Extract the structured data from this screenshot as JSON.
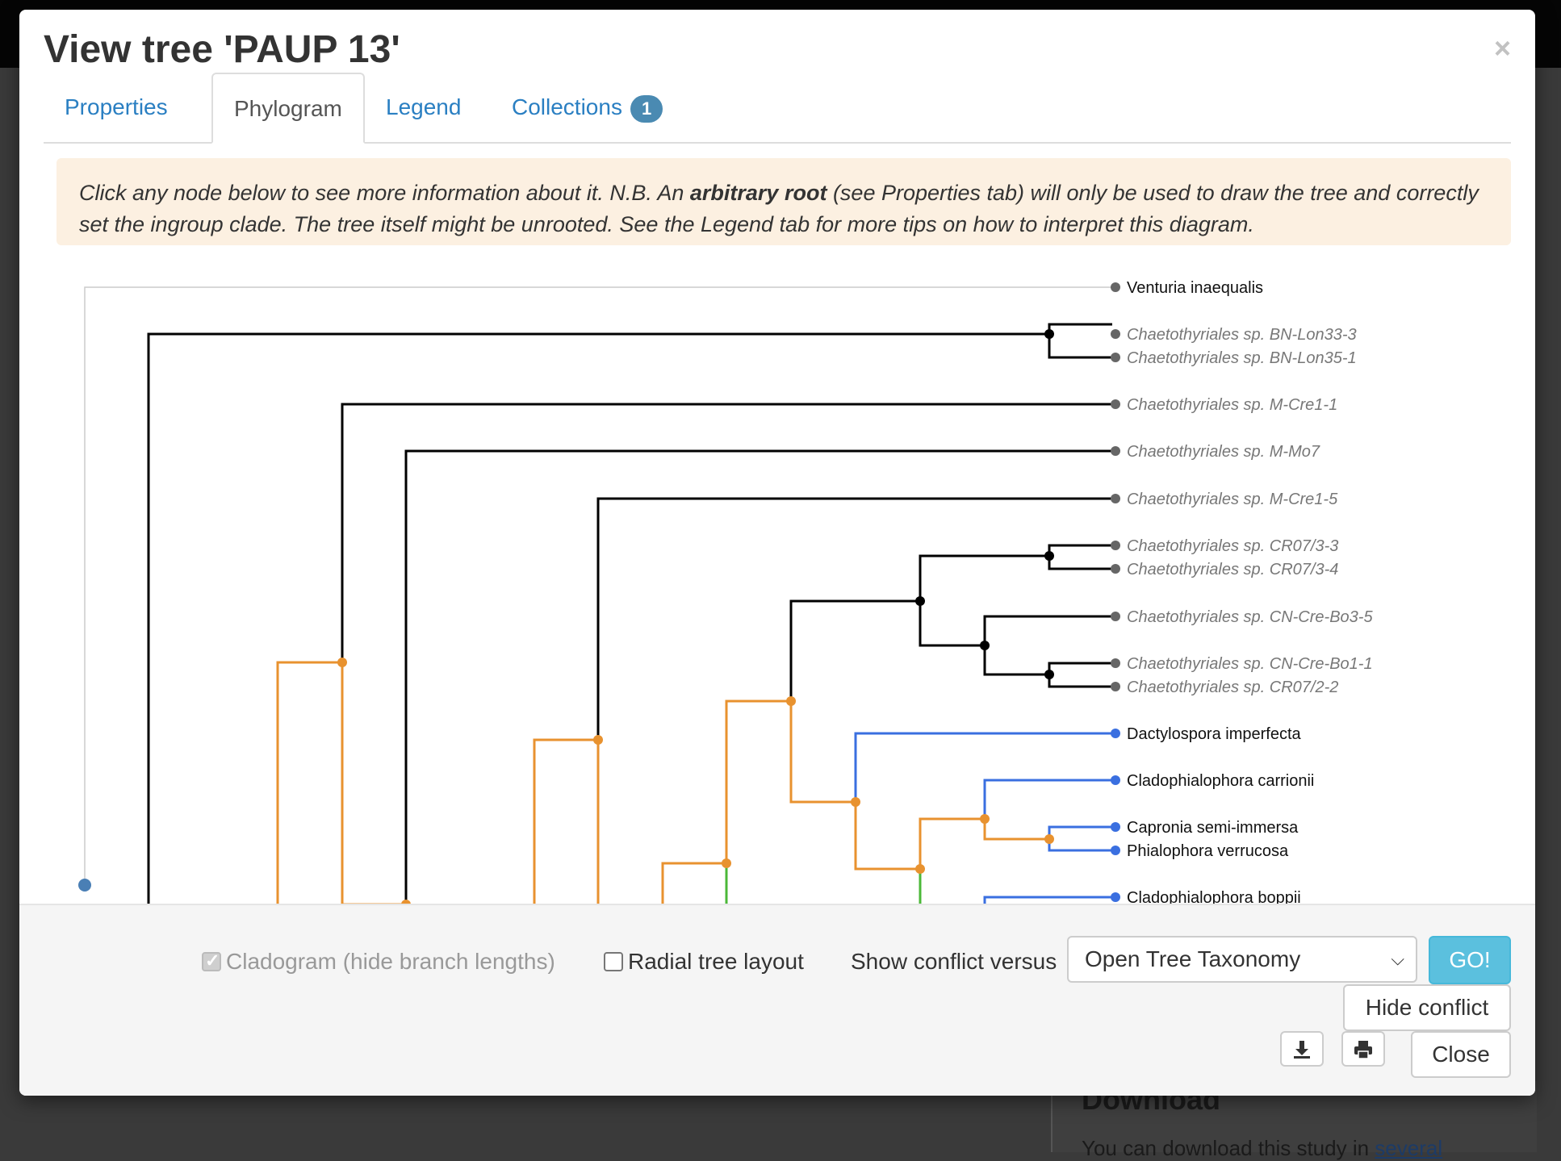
{
  "modal": {
    "title": "View tree 'PAUP 13'",
    "close_icon": "×"
  },
  "tabs": [
    {
      "label": "Properties",
      "active": false
    },
    {
      "label": "Phylogram",
      "active": true
    },
    {
      "label": "Legend",
      "active": false
    },
    {
      "label": "Collections",
      "active": false,
      "badge": "1"
    }
  ],
  "notice": {
    "part1": "Click any node below to see more information about it. N.B. An ",
    "bold": "arbitrary root",
    "part2": " (see Properties tab) will only be used to draw the tree and correctly set the ingroup clade. The tree itself might be unrooted. See the Legend tab for more tips on how to interpret this diagram."
  },
  "tree": {
    "colors": {
      "default": "#000000",
      "conflict": "#e8922f",
      "supported": "#3a6fe0",
      "resolves": "#4bb838",
      "outgroup": "#cccccc",
      "root_node": "#4a7fb5",
      "leaf_node": "#666666"
    },
    "leaves": [
      {
        "label": "Venturia inaequalis",
        "style": "normal",
        "color": "#666666"
      },
      {
        "label": "Chaetothyriales sp. BN-Lon33-3",
        "style": "italic",
        "color": "#666666"
      },
      {
        "label": "Chaetothyriales sp. BN-Lon35-1",
        "style": "italic",
        "color": "#666666"
      },
      {
        "label": "Chaetothyriales sp. M-Cre1-1",
        "style": "italic",
        "color": "#666666"
      },
      {
        "label": "Chaetothyriales sp. M-Mo7",
        "style": "italic",
        "color": "#666666"
      },
      {
        "label": "Chaetothyriales sp. M-Cre1-5",
        "style": "italic",
        "color": "#666666"
      },
      {
        "label": "Chaetothyriales sp. CR07/3-3",
        "style": "italic",
        "color": "#666666"
      },
      {
        "label": "Chaetothyriales sp. CR07/3-4",
        "style": "italic",
        "color": "#666666"
      },
      {
        "label": "Chaetothyriales sp. CN-Cre-Bo3-5",
        "style": "italic",
        "color": "#666666"
      },
      {
        "label": "Chaetothyriales sp. CN-Cre-Bo1-1",
        "style": "italic",
        "color": "#666666"
      },
      {
        "label": "Chaetothyriales sp. CR07/2-2",
        "style": "italic",
        "color": "#666666"
      },
      {
        "label": "Dactylospora imperfecta",
        "style": "normal",
        "color": "#3a6fe0"
      },
      {
        "label": "Cladophialophora carrionii",
        "style": "normal",
        "color": "#3a6fe0"
      },
      {
        "label": "Capronia semi-immersa",
        "style": "normal",
        "color": "#3a6fe0"
      },
      {
        "label": "Phialophora verrucosa",
        "style": "normal",
        "color": "#3a6fe0"
      },
      {
        "label": "Cladophialophora boppii",
        "style": "normal",
        "color": "#3a6fe0"
      }
    ]
  },
  "footer": {
    "cladogram_label": "Cladogram (hide branch lengths)",
    "cladogram_checked": true,
    "radial_label": "Radial tree layout",
    "radial_checked": false,
    "conflict_label": "Show conflict versus",
    "conflict_select_value": "Open Tree Taxonomy",
    "go_label": "GO!",
    "hide_conflict_label": "Hide conflict",
    "download_icon": "download-icon",
    "print_icon": "print-icon",
    "close_label": "Close"
  },
  "background": {
    "heading": "Download",
    "text_prefix": "You can download this study in ",
    "text_link": "several"
  }
}
